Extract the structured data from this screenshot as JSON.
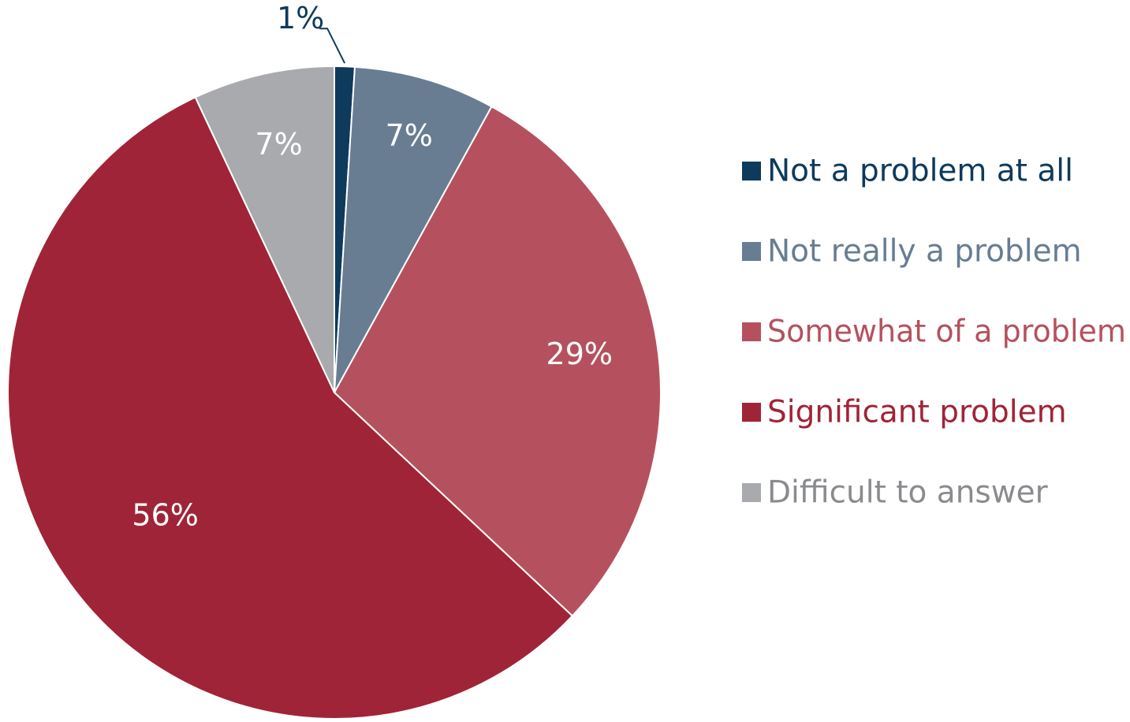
{
  "chart_data": {
    "type": "pie",
    "title": "",
    "slices": [
      {
        "name": "Not a problem at all",
        "value": 1,
        "label": "1%",
        "color": "#0e3a5c",
        "label_color": "#0e3a5c",
        "legend_color": "#0e3a5c",
        "label_placement": "outside-callout"
      },
      {
        "name": "Not really a problem",
        "value": 7,
        "label": "7%",
        "color": "#687d92",
        "label_color": "#ffffff",
        "legend_color": "#687d92",
        "label_placement": "inside"
      },
      {
        "name": "Somewhat of a problem",
        "value": 29,
        "label": "29%",
        "color": "#b5515e",
        "label_color": "#ffffff",
        "legend_color": "#b5515e",
        "label_placement": "inside"
      },
      {
        "name": "Significant problem",
        "value": 56,
        "label": "56%",
        "color": "#a02437",
        "label_color": "#ffffff",
        "legend_color": "#a02437",
        "label_placement": "inside"
      },
      {
        "name": "Difficult to answer",
        "value": 7,
        "label": "7%",
        "color": "#a9aaad",
        "label_color": "#ffffff",
        "legend_color": "#8a8b8e",
        "label_placement": "inside"
      }
    ],
    "start_angle": "12 o'clock",
    "direction": "clockwise",
    "legend": {
      "position": "right"
    }
  }
}
